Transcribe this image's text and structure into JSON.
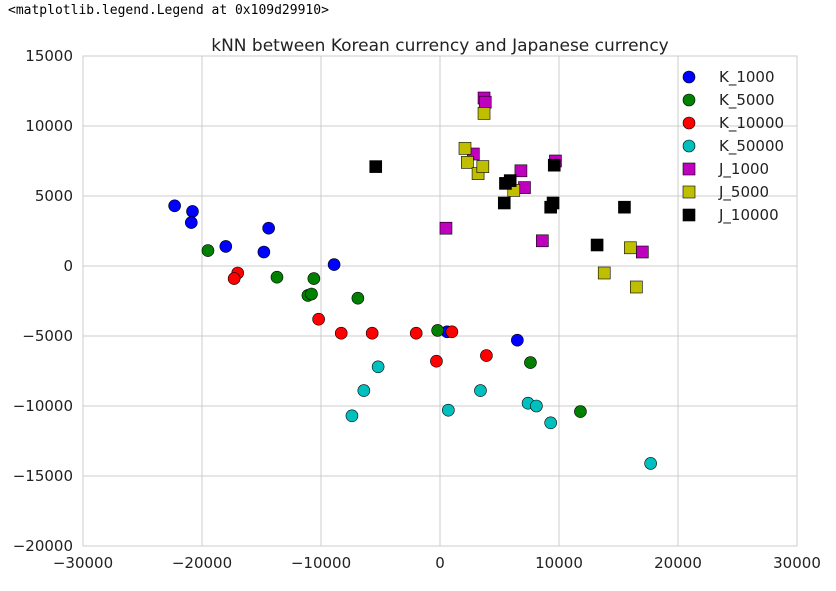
{
  "output_text": "<matplotlib.legend.Legend at 0x109d29910>",
  "chart_data": {
    "type": "scatter",
    "title": "kNN between Korean currency and Japanese currency",
    "xlabel": "",
    "ylabel": "",
    "xlim": [
      -30000,
      30000
    ],
    "ylim": [
      -20000,
      15000
    ],
    "xticks": [
      -30000,
      -20000,
      -10000,
      0,
      10000,
      20000,
      30000
    ],
    "yticks": [
      -20000,
      -15000,
      -10000,
      -5000,
      0,
      5000,
      10000,
      15000
    ],
    "grid": true,
    "legend_position": "top-right",
    "series": [
      {
        "name": "K_1000",
        "color": "#0000ff",
        "marker": "circle",
        "points": [
          [
            -22300,
            4300
          ],
          [
            -20800,
            3900
          ],
          [
            -20900,
            3100
          ],
          [
            -18000,
            1400
          ],
          [
            -14400,
            2700
          ],
          [
            -14800,
            1000
          ],
          [
            -8900,
            100
          ],
          [
            600,
            -4700
          ],
          [
            6500,
            -5300
          ]
        ]
      },
      {
        "name": "K_5000",
        "color": "#008000",
        "marker": "circle",
        "points": [
          [
            -19500,
            1100
          ],
          [
            -13700,
            -800
          ],
          [
            -10600,
            -900
          ],
          [
            -11100,
            -2100
          ],
          [
            -10800,
            -2000
          ],
          [
            -6900,
            -2300
          ],
          [
            -200,
            -4600
          ],
          [
            7600,
            -6900
          ],
          [
            11800,
            -10400
          ]
        ]
      },
      {
        "name": "K_10000",
        "color": "#ff0000",
        "marker": "circle",
        "points": [
          [
            -17000,
            -500
          ],
          [
            -17300,
            -900
          ],
          [
            -10200,
            -3800
          ],
          [
            -8300,
            -4800
          ],
          [
            -5700,
            -4800
          ],
          [
            -2000,
            -4800
          ],
          [
            -300,
            -6800
          ],
          [
            1000,
            -4700
          ],
          [
            3900,
            -6400
          ]
        ]
      },
      {
        "name": "K_50000",
        "color": "#00bfbf",
        "marker": "circle",
        "points": [
          [
            -7400,
            -10700
          ],
          [
            -6400,
            -8900
          ],
          [
            -5200,
            -7200
          ],
          [
            700,
            -10300
          ],
          [
            3400,
            -8900
          ],
          [
            7400,
            -9800
          ],
          [
            8100,
            -10000
          ],
          [
            9300,
            -11200
          ],
          [
            17700,
            -14100
          ]
        ]
      },
      {
        "name": "J_1000",
        "color": "#bf00bf",
        "marker": "square",
        "points": [
          [
            500,
            2700
          ],
          [
            2800,
            8000
          ],
          [
            3700,
            12000
          ],
          [
            3800,
            11700
          ],
          [
            6800,
            6800
          ],
          [
            7100,
            5600
          ],
          [
            8600,
            1800
          ],
          [
            9700,
            7500
          ],
          [
            17000,
            1000
          ]
        ]
      },
      {
        "name": "J_5000",
        "color": "#bfbf00",
        "marker": "square",
        "points": [
          [
            2100,
            8400
          ],
          [
            2300,
            7400
          ],
          [
            3200,
            6600
          ],
          [
            3600,
            7100
          ],
          [
            3700,
            10900
          ],
          [
            6200,
            5400
          ],
          [
            13800,
            -500
          ],
          [
            16000,
            1300
          ],
          [
            16500,
            -1500
          ]
        ]
      },
      {
        "name": "J_10000",
        "color": "#000000",
        "marker": "square",
        "points": [
          [
            -5400,
            7100
          ],
          [
            5400,
            4500
          ],
          [
            5500,
            5900
          ],
          [
            5900,
            6100
          ],
          [
            9300,
            4200
          ],
          [
            9500,
            4500
          ],
          [
            9600,
            7200
          ],
          [
            13200,
            1500
          ],
          [
            15500,
            4200
          ]
        ]
      }
    ]
  }
}
